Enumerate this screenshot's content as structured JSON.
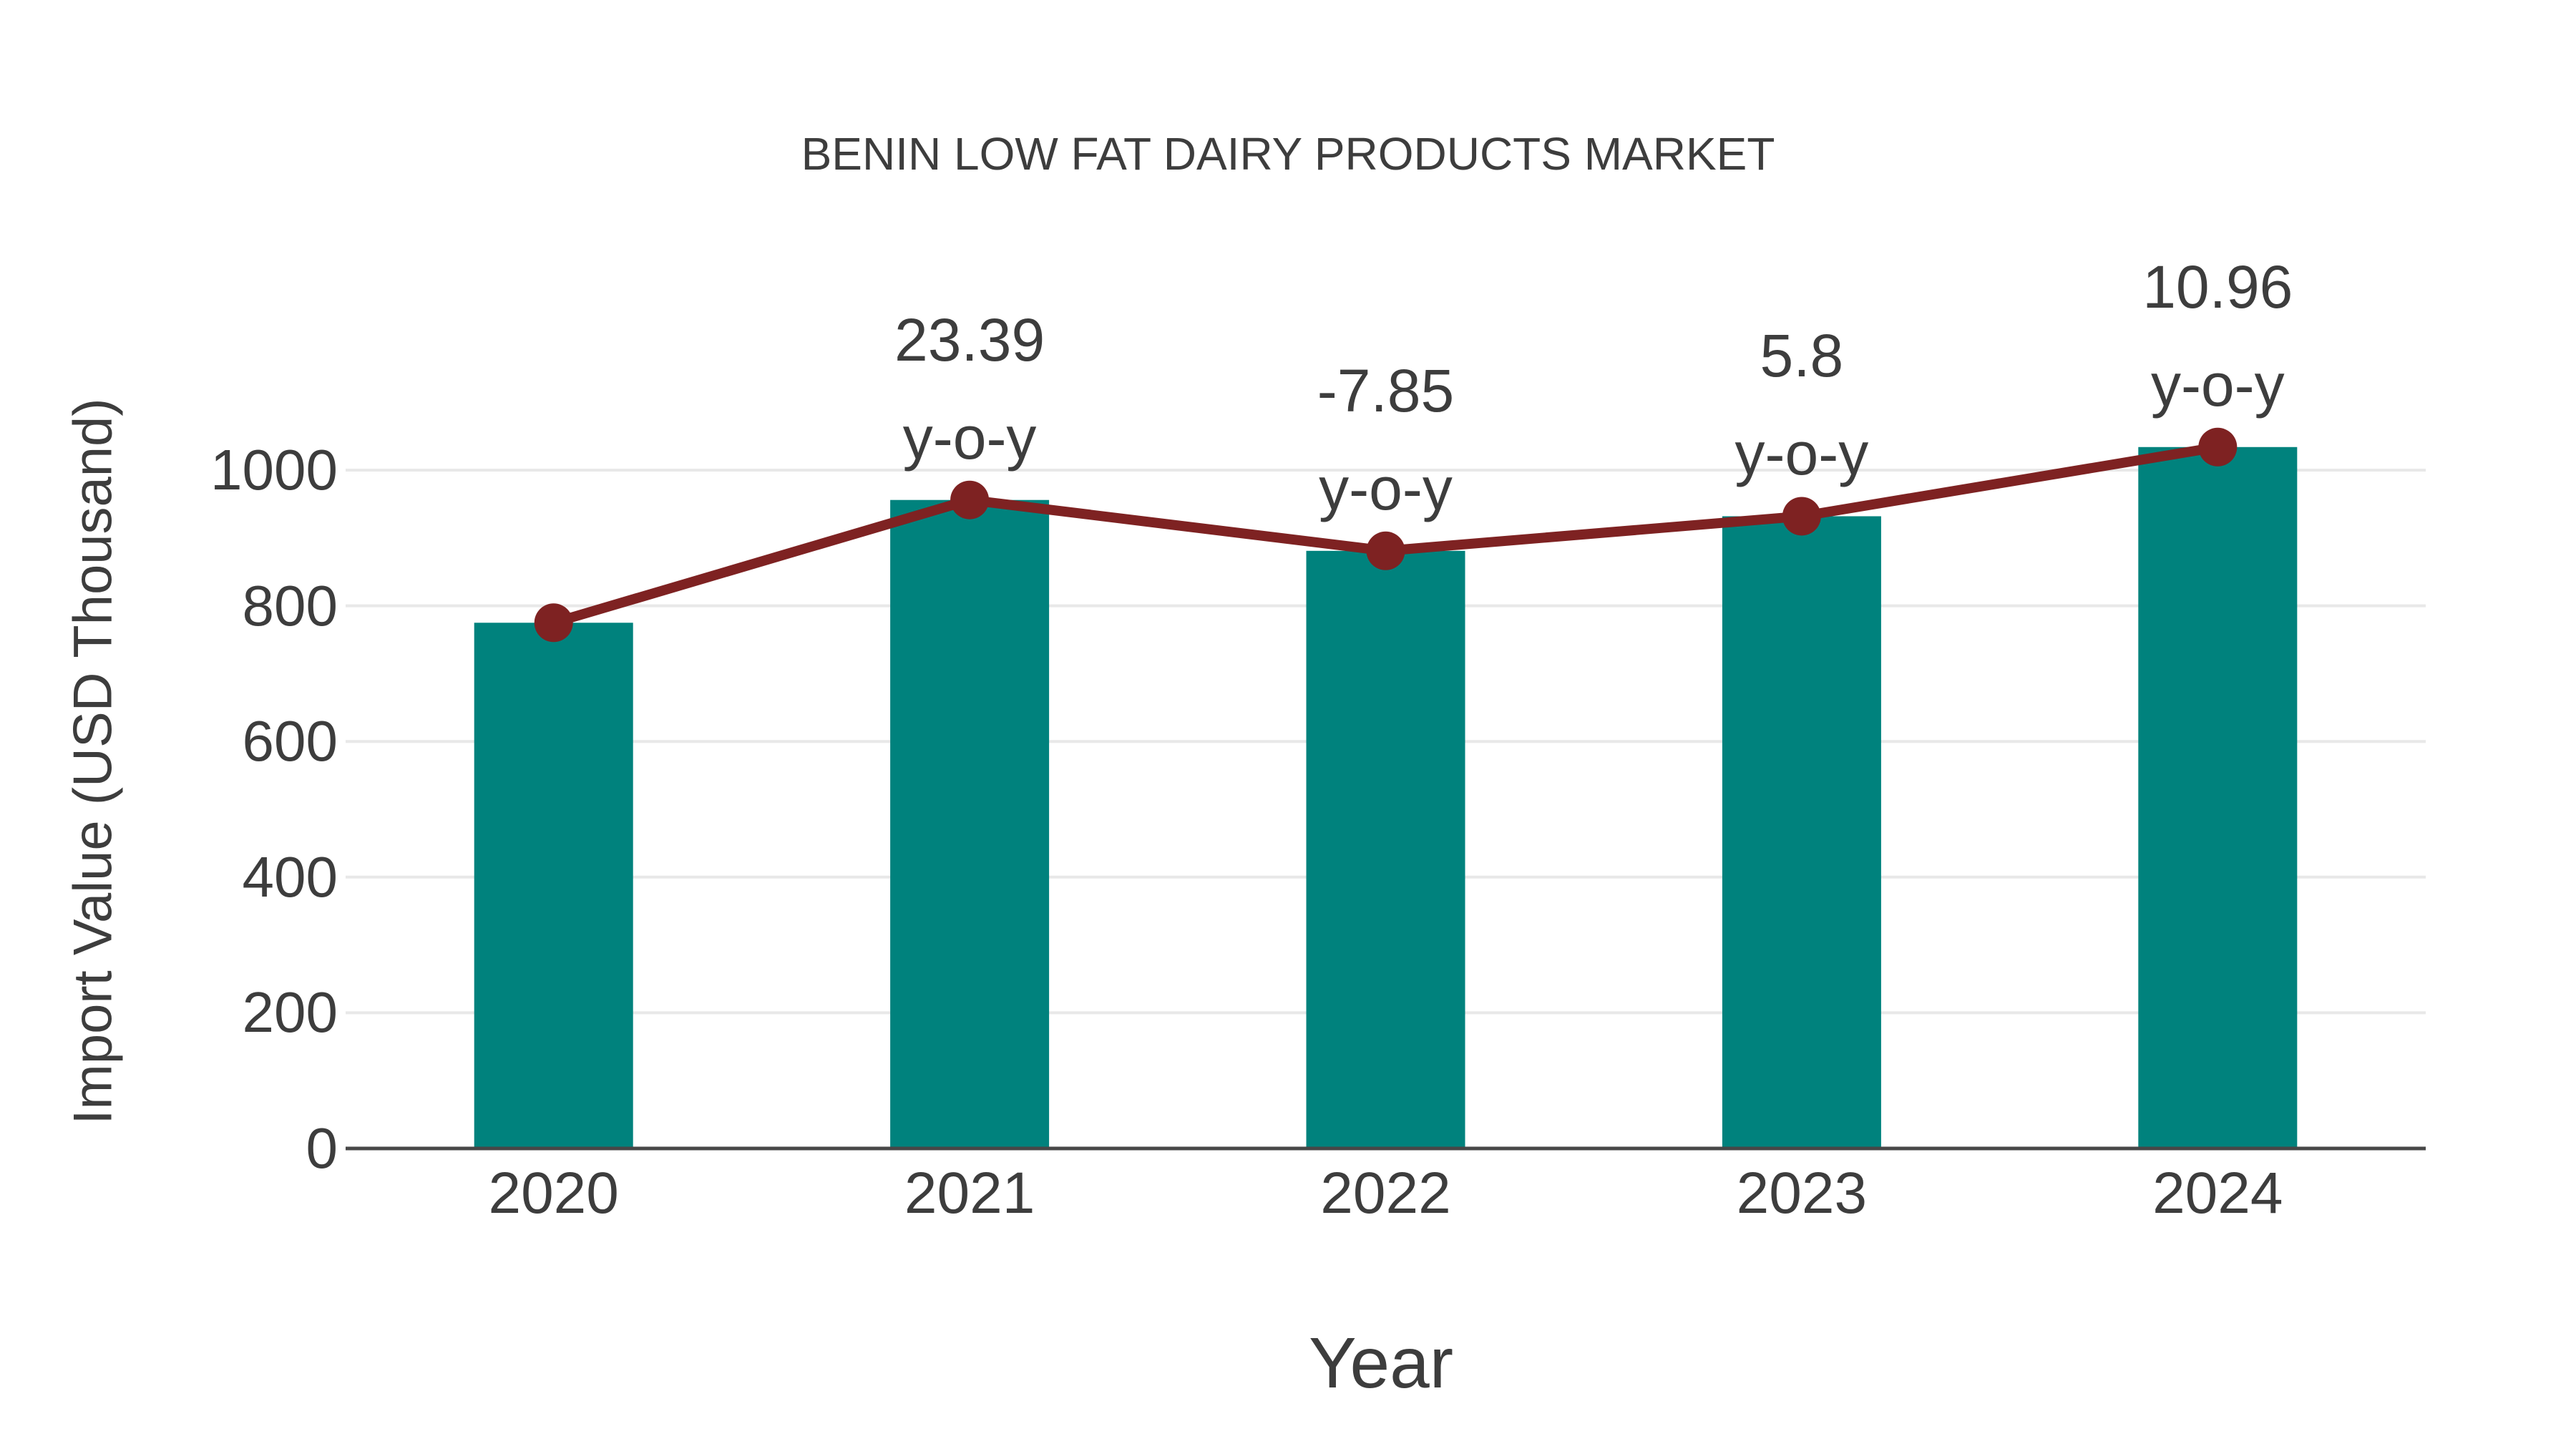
{
  "chart_data": {
    "type": "bar",
    "title": "BENIN LOW FAT DAIRY PRODUCTS MARKET",
    "xlabel": "Year",
    "ylabel": "Import Value (USD Thousand)",
    "categories": [
      "2020",
      "2021",
      "2022",
      "2023",
      "2024"
    ],
    "series": [
      {
        "type": "bar",
        "color": "#00827D",
        "values": [
          775,
          956,
          881,
          932,
          1034
        ]
      },
      {
        "type": "line",
        "color": "#7E2222",
        "values": [
          775,
          956,
          881,
          932,
          1034
        ]
      }
    ],
    "annotations": [
      {
        "category": "2021",
        "lines": [
          "23.39",
          "y-o-y"
        ]
      },
      {
        "category": "2022",
        "lines": [
          "-7.85",
          "y-o-y"
        ]
      },
      {
        "category": "2023",
        "lines": [
          "5.8",
          "y-o-y"
        ]
      },
      {
        "category": "2024",
        "lines": [
          "10.96",
          "y-o-y"
        ]
      }
    ],
    "yticks": [
      0,
      200,
      400,
      600,
      800,
      1000
    ],
    "ylim": [
      0,
      1090
    ],
    "grid": true,
    "legend_position": "none",
    "colors": {
      "bar": "#00827D",
      "line": "#7E2222",
      "marker": "#7E2222",
      "text": "#3D3D3D",
      "grid": "#E8E8E8",
      "axis": "#474747"
    }
  }
}
